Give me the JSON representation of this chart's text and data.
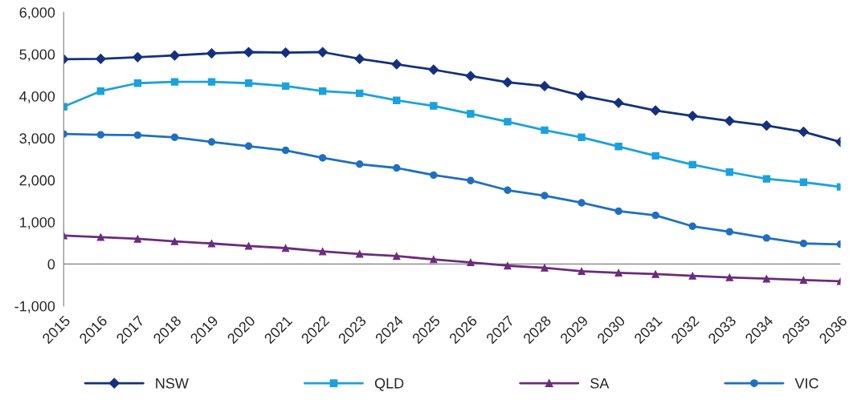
{
  "chart_data": {
    "type": "line",
    "categories": [
      "2015",
      "2016",
      "2017",
      "2018",
      "2019",
      "2020",
      "2021",
      "2022",
      "2023",
      "2024",
      "2025",
      "2026",
      "2027",
      "2028",
      "2029",
      "2030",
      "2031",
      "2032",
      "2033",
      "2034",
      "2035",
      "2036"
    ],
    "series": [
      {
        "name": "NSW",
        "color": "#14307e",
        "marker": "diamond",
        "values": [
          4880,
          4890,
          4930,
          4970,
          5020,
          5050,
          5040,
          5050,
          4890,
          4760,
          4630,
          4480,
          4330,
          4240,
          4010,
          3840,
          3660,
          3530,
          3410,
          3300,
          3150,
          2910
        ]
      },
      {
        "name": "QLD",
        "color": "#1ba1dd",
        "marker": "square",
        "values": [
          3750,
          4120,
          4310,
          4340,
          4340,
          4310,
          4240,
          4120,
          4070,
          3900,
          3770,
          3580,
          3390,
          3190,
          3020,
          2800,
          2580,
          2370,
          2190,
          2030,
          1950,
          1840
        ]
      },
      {
        "name": "SA",
        "color": "#6b2c7c",
        "marker": "triangle",
        "values": [
          680,
          640,
          600,
          540,
          490,
          430,
          380,
          300,
          240,
          190,
          110,
          40,
          -40,
          -90,
          -170,
          -210,
          -240,
          -280,
          -320,
          -350,
          -380,
          -410
        ]
      },
      {
        "name": "VIC",
        "color": "#1f6fc1",
        "marker": "circle",
        "values": [
          3100,
          3080,
          3070,
          3020,
          2910,
          2810,
          2710,
          2530,
          2380,
          2290,
          2120,
          1990,
          1760,
          1630,
          1460,
          1260,
          1160,
          900,
          770,
          620,
          490,
          470
        ]
      }
    ],
    "ylim": [
      -1000,
      6000
    ],
    "yticks": [
      {
        "value": -1000,
        "label": "-1,000"
      },
      0,
      {
        "value": 1000,
        "label": "1,000"
      },
      {
        "value": 2000,
        "label": "2,000"
      },
      {
        "value": 3000,
        "label": "3,000"
      },
      {
        "value": 4000,
        "label": "4,000"
      },
      {
        "value": 5000,
        "label": "5,000"
      },
      {
        "value": 6000,
        "label": "6,000"
      }
    ],
    "ref_lines": [
      {
        "axis": "y",
        "value": 0,
        "color": "#808080"
      }
    ],
    "legend": "bottom",
    "grid": false,
    "line_style": "solid"
  }
}
